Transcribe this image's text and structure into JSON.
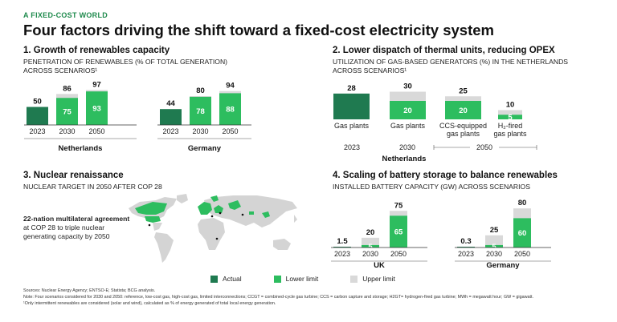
{
  "header": {
    "kicker": "A FIXED-COST WORLD",
    "title": "Four factors driving the shift toward a fixed-cost electricity system"
  },
  "colors": {
    "actual": "#1f7a50",
    "lower": "#2dbd5f",
    "upper": "#d9d9d9",
    "map_land": "#d4d4d4",
    "map_highlight": "#2dbd5f",
    "accent": "#1e8a4c"
  },
  "panels": {
    "p1": {
      "title": "1. Growth of renewables capacity",
      "subtitle_line1": "PENETRATION OF RENEWABLES (% OF TOTAL GENERATION)",
      "subtitle_line2": "ACROSS SCENARIOS¹"
    },
    "p2": {
      "title": "2. Lower dispatch of thermal units, reducing OPEX",
      "subtitle_line1": "UTILIZATION OF GAS-BASED GENERATORS (%) IN THE NETHERLANDS",
      "subtitle_line2": "ACROSS SCENARIOS¹"
    },
    "p3": {
      "title": "3. Nuclear renaissance",
      "subtitle_line1": "NUCLEAR TARGET IN 2050 AFTER COP 28",
      "callout_bold": "22-nation multilateral agreement",
      "callout_rest": " at COP 28 to triple nuclear generating capacity by 2050"
    },
    "p4": {
      "title": "4. Scaling of battery storage to balance renewables",
      "subtitle_line1": "INSTALLED BATTERY CAPACITY (GW) ACROSS SCENARIOS"
    }
  },
  "chart_data": [
    {
      "id": "renewables",
      "type": "bar",
      "groups": [
        {
          "name": "Netherlands",
          "categories": [
            "2023",
            "2030",
            "2050"
          ],
          "actual": [
            50,
            null,
            null
          ],
          "lower": [
            null,
            75,
            93
          ],
          "upper": [
            null,
            86,
            97
          ]
        },
        {
          "name": "Germany",
          "categories": [
            "2023",
            "2030",
            "2050"
          ],
          "actual": [
            44,
            null,
            null
          ],
          "lower": [
            null,
            78,
            88
          ],
          "upper": [
            null,
            80,
            94
          ]
        }
      ],
      "ylim": [
        0,
        100
      ]
    },
    {
      "id": "gas_utilization",
      "type": "bar",
      "group": "Netherlands",
      "categories": [
        "Gas plants",
        "Gas plants",
        "CCS-equipped gas plants",
        "H₂-fired gas plants"
      ],
      "category_lines": [
        [
          "Gas plants"
        ],
        [
          "Gas plants"
        ],
        [
          "CCS-equipped",
          "gas plants"
        ],
        [
          "H₂-fired",
          "gas plants"
        ]
      ],
      "periods": [
        "2023",
        "2030",
        "2050"
      ],
      "actual": [
        28,
        null,
        null,
        null
      ],
      "lower": [
        null,
        20,
        20,
        5
      ],
      "upper": [
        null,
        30,
        25,
        10
      ],
      "ylim": [
        0,
        30
      ]
    },
    {
      "id": "battery",
      "type": "bar",
      "groups": [
        {
          "name": "UK",
          "categories": [
            "2023",
            "2030",
            "2050"
          ],
          "actual": [
            1.5,
            null,
            null
          ],
          "lower": [
            null,
            5,
            65
          ],
          "upper": [
            null,
            20,
            75
          ]
        },
        {
          "name": "Germany",
          "categories": [
            "2023",
            "2030",
            "2050"
          ],
          "actual": [
            0.3,
            null,
            null
          ],
          "lower": [
            null,
            5,
            60
          ],
          "upper": [
            null,
            25,
            80
          ]
        }
      ],
      "ylim": [
        0,
        80
      ]
    }
  ],
  "legend": [
    {
      "label": "Actual",
      "color": "#1f7a50"
    },
    {
      "label": "Lower limit",
      "color": "#2dbd5f"
    },
    {
      "label": "Upper limit",
      "color": "#d9d9d9"
    }
  ],
  "footnotes": {
    "sources": "Sources: Nuclear Energy Agency; ENTSO-E; Statista; BCG analysis.",
    "note": "Note: Four scenarios considered for 2030 and 2050: reference, low-cost gas, high-cost gas, limited interconnections; CCGT = combined-cycle gas turbine; CCS = carbon capture and storage; H2GT= hydrogen-fired gas turbine; MWh = megawatt hour; GW = gigawatt.",
    "fn1": "¹Only intermittent renewables are considered (solar and wind), calculated as % of energy generated of total local energy generation."
  }
}
